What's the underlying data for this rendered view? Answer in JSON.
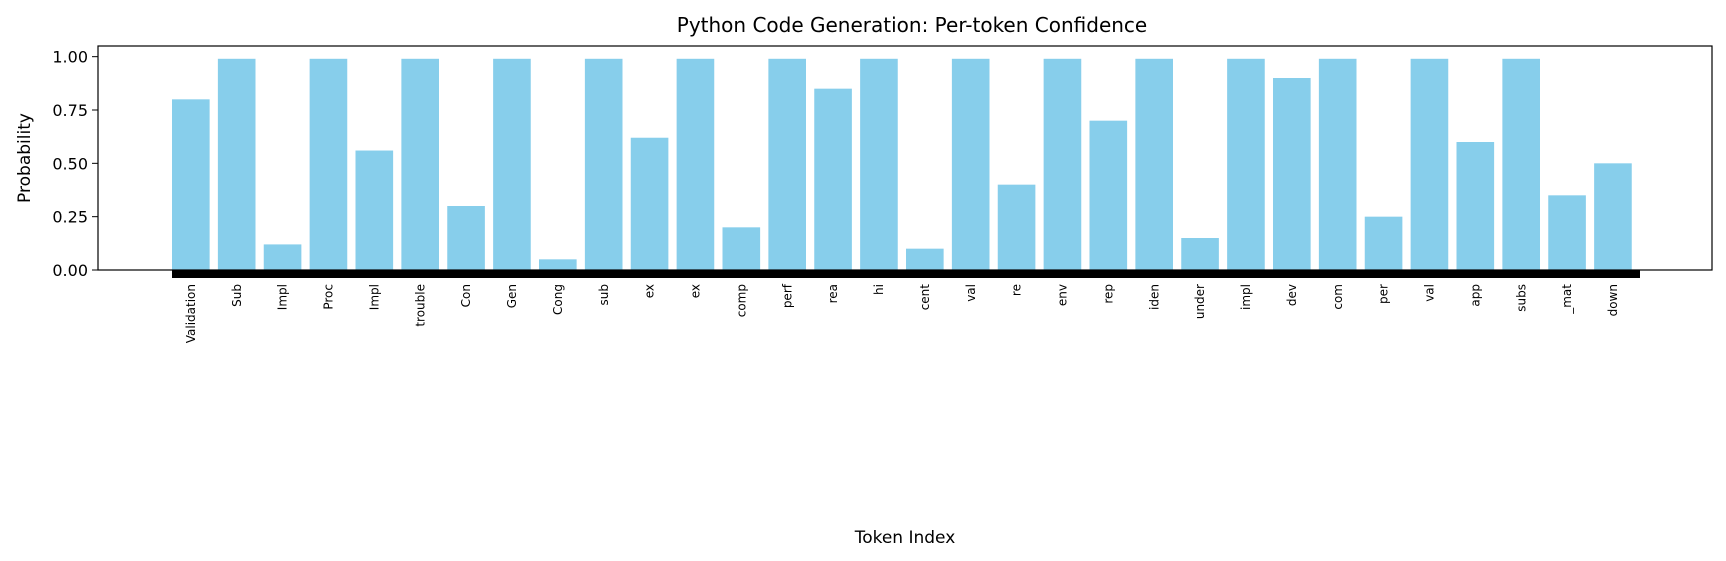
{
  "chart_data": {
    "type": "bar",
    "title": "Python Code Generation: Per-token Confidence",
    "xlabel": "Token Index",
    "ylabel": "Probability",
    "ylim": [
      0,
      1.05
    ],
    "yticks": [
      "0.00",
      "0.25",
      "0.50",
      "0.75",
      "1.00"
    ],
    "bar_color": "#87ceeb",
    "grid": false,
    "legend": "none",
    "categories": [
      "Validation",
      "Sub",
      "Impl",
      "Proc",
      "Impl",
      "trouble",
      "Con",
      "Gen",
      "Cong",
      "sub",
      "ex",
      "ex",
      "comp",
      "perf",
      "rea",
      "hi",
      "cent",
      "val",
      "re",
      "env",
      "rep",
      "iden",
      "under",
      "impl",
      "dev",
      "com",
      "per",
      "val",
      "app",
      "subs",
      "_mat",
      "down"
    ],
    "values": [
      0.8,
      0.99,
      0.12,
      0.99,
      0.56,
      0.99,
      0.3,
      0.99,
      0.05,
      0.99,
      0.62,
      0.99,
      0.2,
      0.99,
      0.85,
      0.99,
      0.1,
      0.99,
      0.4,
      0.99,
      0.7,
      0.99,
      0.15,
      0.99,
      0.9,
      0.99,
      0.25,
      0.99,
      0.6,
      0.99,
      0.35,
      0.5
    ]
  }
}
